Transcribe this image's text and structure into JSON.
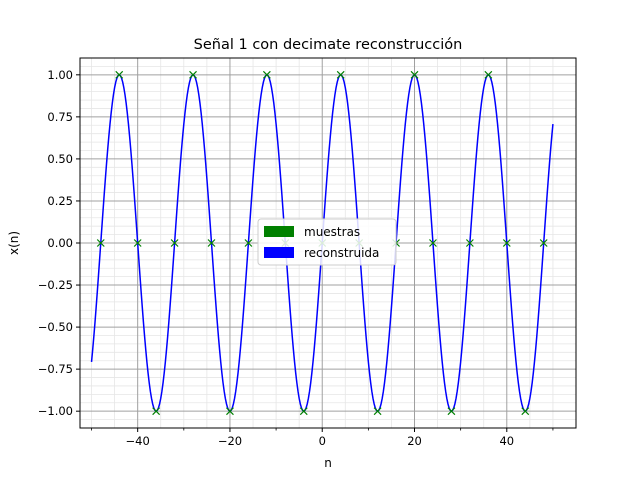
{
  "chart_data": {
    "type": "line",
    "title": "Señal 1 con decimate reconstrucción",
    "xlabel": "n",
    "ylabel": "x(n)",
    "xlim": [
      -52.5,
      55
    ],
    "ylim": [
      -1.1,
      1.1
    ],
    "x_ticks": [
      -40,
      -20,
      0,
      20,
      40
    ],
    "x_tick_labels": [
      "−40",
      "−20",
      "0",
      "20",
      "40"
    ],
    "y_ticks": [
      -1.0,
      -0.75,
      -0.5,
      -0.25,
      0.0,
      0.25,
      0.5,
      0.75,
      1.0
    ],
    "y_tick_labels": [
      "−1.00",
      "−0.75",
      "−0.50",
      "−0.25",
      "0.00",
      "0.25",
      "0.50",
      "0.75",
      "1.00"
    ],
    "grid": true,
    "minor_grid": true,
    "legend": {
      "placement": "center",
      "entries": [
        {
          "label": "muestras",
          "color": "#008000"
        },
        {
          "label": "reconstruida",
          "color": "#0000ff"
        }
      ]
    },
    "series": [
      {
        "name": "muestras",
        "kind": "markers",
        "marker": "x",
        "color": "#008000",
        "x": [
          -48,
          -44,
          -40,
          -36,
          -32,
          -28,
          -24,
          -20,
          -16,
          -12,
          -8,
          -4,
          0,
          4,
          8,
          12,
          16,
          20,
          24,
          28,
          32,
          36,
          40,
          44,
          48
        ],
        "y": [
          0,
          1,
          0,
          -1,
          0,
          1,
          0,
          -1,
          0,
          1,
          0,
          -1,
          0,
          1,
          0,
          -1,
          0,
          1,
          0,
          -1,
          0,
          1,
          0,
          -1,
          0
        ]
      },
      {
        "name": "reconstruida",
        "kind": "line",
        "color": "#0000ff",
        "function": "sin(2*pi*n/16)",
        "x_range": [
          -50,
          50
        ]
      }
    ]
  }
}
